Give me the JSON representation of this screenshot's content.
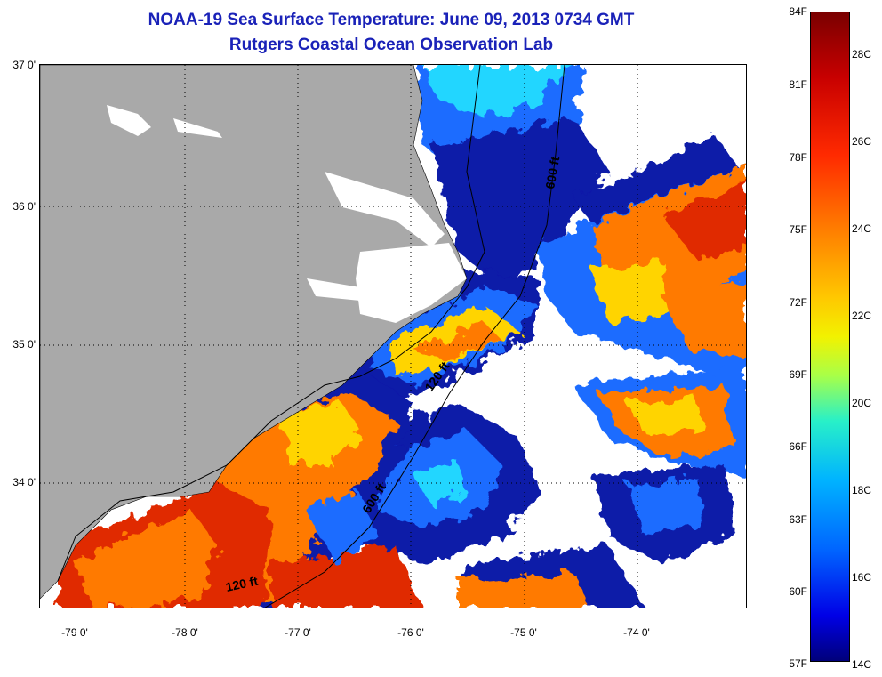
{
  "title": {
    "line1": "NOAA-19 Sea Surface Temperature:  June 09, 2013 0734 GMT",
    "line2": "Rutgers Coastal Ocean Observation Lab"
  },
  "map": {
    "lat_labels": [
      "37 0'",
      "36 0'",
      "35 0'",
      "34 0'"
    ],
    "lon_labels": [
      "-79 0'",
      "-78 0'",
      "-77 0'",
      "-76 0'",
      "-75 0'",
      "-74 0'"
    ],
    "contour_labels": {
      "upper_600": "600 ft",
      "mid_120": "120 ft",
      "lower_600": "600 ft",
      "lower_120": "120 ft"
    },
    "colors": {
      "land": "#a9a9a9",
      "cloud": "#ffffff",
      "cold": "#0a1aa8",
      "cool": "#1e6cff",
      "mild": "#22d6ff",
      "warm": "#ffd400",
      "hot": "#ff7a00",
      "hottest": "#e02a00"
    }
  },
  "colorbar": {
    "fahrenheit": [
      "84F",
      "81F",
      "78F",
      "75F",
      "72F",
      "69F",
      "66F",
      "63F",
      "60F",
      "57F"
    ],
    "celsius": [
      "28C",
      "26C",
      "24C",
      "22C",
      "20C",
      "18C",
      "16C",
      "14C"
    ]
  }
}
